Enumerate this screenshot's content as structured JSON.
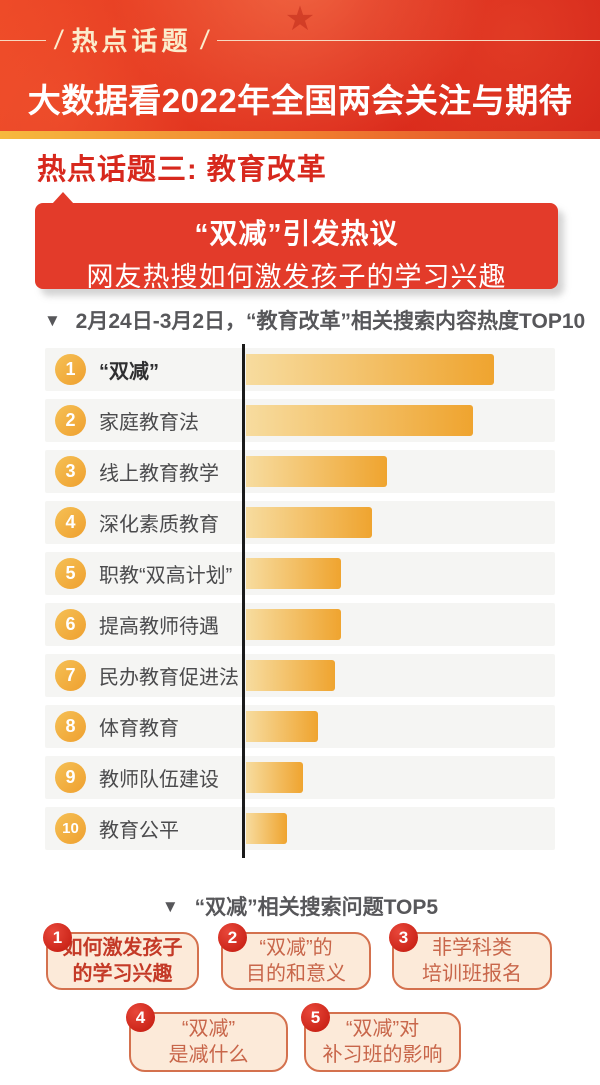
{
  "colors": {
    "header_red": "#de2e1d",
    "gold_strip_start": "#f6b93e",
    "gold_strip_end": "#e0452a",
    "accent_red": "#d7281d",
    "banner_red": "#e33b2a",
    "note_gray": "#57575a",
    "row_bg": "#f5f5f3",
    "bar_gradient_start": "#f7dc9f",
    "bar_gradient_end": "#efa42f",
    "rank_circle_orange": "#efa02f",
    "axis_line": "#1a1a1a",
    "card_bg": "#fcead9",
    "card_border": "#d4714e",
    "card_text": "#c8664a",
    "card_text_highlight": "#c43a27",
    "badge_red": "#cb2418",
    "tag_cream": "#fbeccc"
  },
  "header": {
    "star": "★",
    "tag_slash": "/",
    "tag": "热点话题",
    "title": "大数据看2022年全国两会关注与期待"
  },
  "section": {
    "title": "热点话题三: 教育改革"
  },
  "banner": {
    "line1": "“双减”引发热议",
    "line2": "网友热搜如何激发孩子的学习兴趣"
  },
  "chart_note": {
    "marker": "▼",
    "text": "2月24日-3月2日，“教育改革”相关搜索内容热度TOP10"
  },
  "chart_data": {
    "type": "bar",
    "orientation": "horizontal",
    "title": "2月24日-3月2日，“教育改革”相关搜索内容热度TOP10",
    "categories": [
      "“双减”",
      "家庭教育法",
      "线上教育教学",
      "深化素质教育",
      "职教“双高计划”",
      "提高教师待遇",
      "民办教育促进法",
      "体育教育",
      "教师队伍建设",
      "教育公平"
    ],
    "ranks": [
      1,
      2,
      3,
      4,
      5,
      6,
      7,
      8,
      9,
      10
    ],
    "values": [
      100,
      91.5,
      57,
      51,
      38.5,
      38.5,
      36,
      29,
      23,
      16.5
    ],
    "value_note": "relative search heat as % of longest bar; no numeric labels shown in image",
    "xlim": [
      0,
      100
    ],
    "grid": false,
    "legend": false,
    "first_category_bold": true
  },
  "top5": {
    "marker": "▼",
    "heading": "“双减”相关搜索问题TOP5",
    "items": [
      {
        "rank": "1",
        "lines": [
          "如何激发孩子",
          "的学习兴趣"
        ],
        "highlight": true
      },
      {
        "rank": "2",
        "lines": [
          "“双减”的",
          "目的和意义"
        ],
        "highlight": false
      },
      {
        "rank": "3",
        "lines": [
          "非学科类",
          "培训班报名"
        ],
        "highlight": false
      },
      {
        "rank": "4",
        "lines": [
          "“双减”",
          "是减什么"
        ],
        "highlight": false
      },
      {
        "rank": "5",
        "lines": [
          "“双减”对",
          "补习班的影响"
        ],
        "highlight": false
      }
    ]
  }
}
